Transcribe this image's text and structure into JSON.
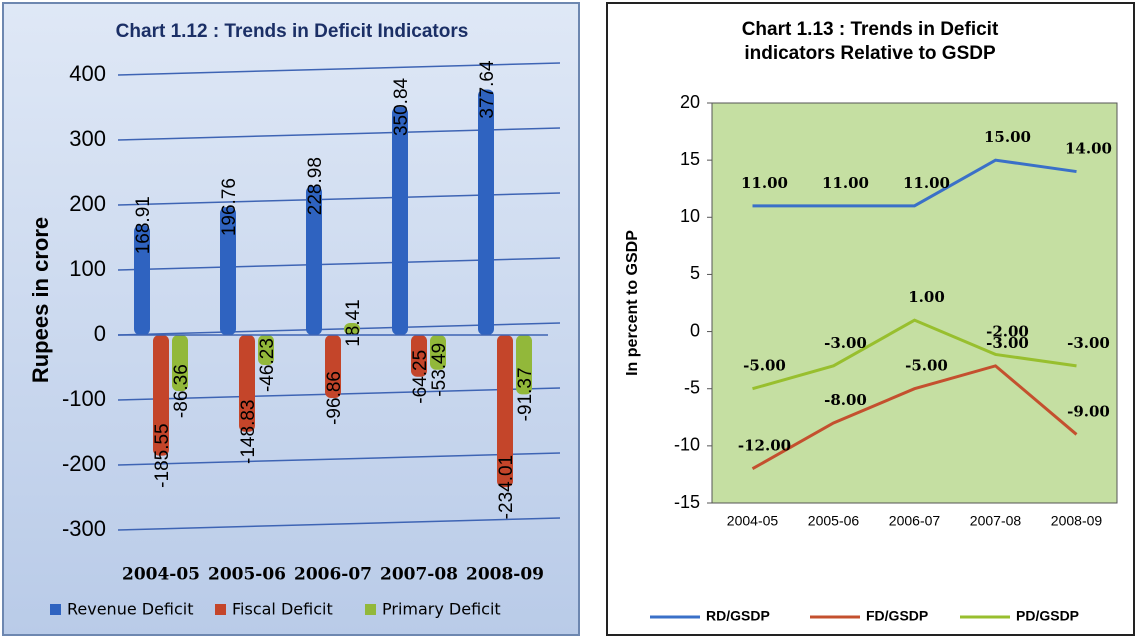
{
  "chart_data": [
    {
      "type": "bar",
      "title": "Chart 1.12 : Trends in Deficit Indicators",
      "y_label": "Rupees in crore",
      "categories": [
        "2004-05",
        "2005-06",
        "2006-07",
        "2007-08",
        "2008-09"
      ],
      "series": [
        {
          "name": "Revenue Deficit",
          "color": "#2f63c0",
          "values": [
            168.91,
            196.76,
            228.98,
            350.84,
            377.64
          ]
        },
        {
          "name": "Fiscal Deficit",
          "color": "#c4452a",
          "values": [
            -185.55,
            -148.83,
            -96.86,
            -64.25,
            -234.01
          ]
        },
        {
          "name": "Primary Deficit",
          "color": "#92b83a",
          "values": [
            -86.36,
            -46.23,
            18.41,
            -53.49,
            -91.37
          ]
        }
      ],
      "ylim": [
        -300,
        400
      ],
      "yticks": [
        -300,
        -200,
        -100,
        0,
        100,
        200,
        300,
        400
      ],
      "grid": true,
      "legend": "bottom"
    },
    {
      "type": "line",
      "title": "Chart 1.13 : Trends in Deficit indicators Relative to GSDP",
      "y_label": "In percent to GSDP",
      "categories": [
        "2004-05",
        "2005-06",
        "2006-07",
        "2007-08",
        "2008-09"
      ],
      "series": [
        {
          "name": "RD/GSDP",
          "color": "#3a70c8",
          "values": [
            11,
            11,
            11,
            15,
            14
          ],
          "value_labels": [
            "11.00",
            "11.00",
            "11.00",
            "15.00",
            "14.00"
          ]
        },
        {
          "name": "FD/GSDP",
          "color": "#c4502e",
          "values": [
            -12,
            -8,
            -5,
            -3,
            -9
          ],
          "value_labels": [
            "-12.00",
            "-8.00",
            "-5.00",
            "-3.00",
            "-9.00"
          ]
        },
        {
          "name": "PD/GSDP",
          "color": "#98bf2e",
          "values": [
            -5,
            -3,
            1,
            -2,
            -3
          ],
          "value_labels": [
            "-5.00",
            "-3.00",
            "1.00",
            "-2.00",
            "-3.00"
          ]
        }
      ],
      "ylim": [
        -15,
        20
      ],
      "yticks": [
        -15,
        -10,
        -5,
        0,
        5,
        10,
        15,
        20
      ],
      "grid": false,
      "legend": "bottom"
    }
  ]
}
